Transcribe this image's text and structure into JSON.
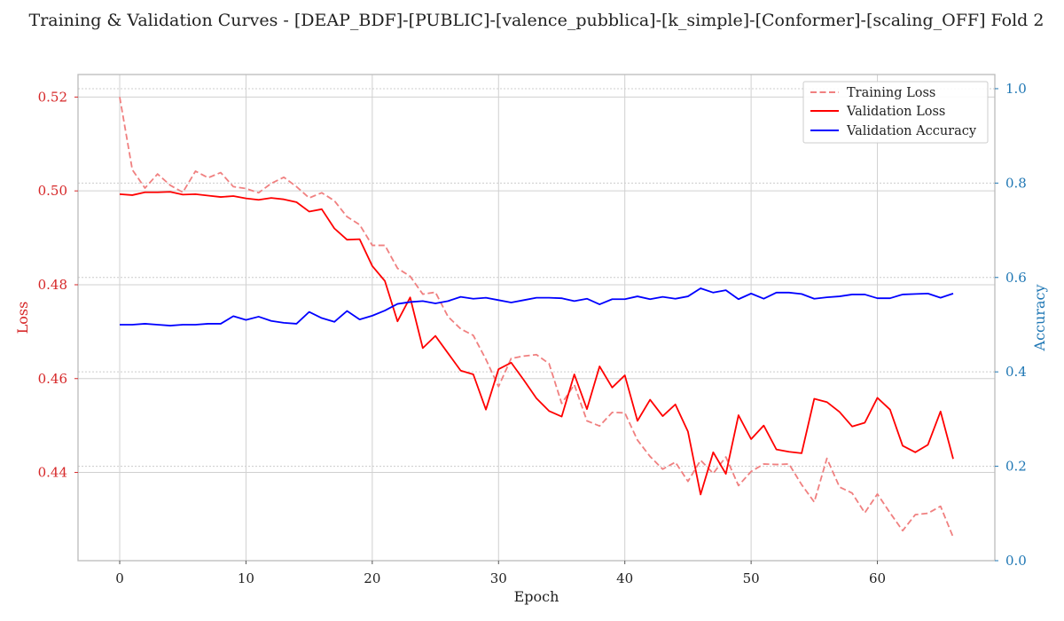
{
  "chart_data": {
    "type": "line",
    "title": "Training & Validation Curves - [DEAP_BDF]-[PUBLIC]-[valence_pubblica]-[k_simple]-[Conformer]-[scaling_OFF] Fold 2",
    "xlabel": "Epoch",
    "ylabel_left": "Loss",
    "ylabel_right": "Accuracy",
    "xlim": [
      -3.3,
      69.3
    ],
    "ylim_left": [
      0.4212,
      0.5248
    ],
    "ylim_right": [
      0.0,
      1.03
    ],
    "x_ticks": [
      0,
      10,
      20,
      30,
      40,
      50,
      60
    ],
    "y_ticks_left": [
      0.44,
      0.46,
      0.48,
      0.5,
      0.52
    ],
    "y_ticks_left_labels": [
      "0.44",
      "0.46",
      "0.48",
      "0.50",
      "0.52"
    ],
    "y_ticks_right": [
      0.0,
      0.2,
      0.4,
      0.6,
      0.8,
      1.0
    ],
    "y_ticks_right_labels": [
      "0.0",
      "0.2",
      "0.4",
      "0.6",
      "0.8",
      "1.0"
    ],
    "grid": true,
    "legend_position": "top-right",
    "colors": {
      "training_loss": "#f08080",
      "validation_loss": "#ff0000",
      "validation_accuracy": "#0000ff",
      "left_axis": "#d62728",
      "right_axis": "#1f77b4"
    },
    "series": [
      {
        "name": "Training Loss",
        "axis": "left",
        "style": "dashed",
        "color": "#f08080",
        "values": [
          0.52,
          0.5045,
          0.5006,
          0.5036,
          0.5012,
          0.4997,
          0.5042,
          0.5028,
          0.5039,
          0.5009,
          0.5005,
          0.4996,
          0.5016,
          0.5029,
          0.5009,
          0.4985,
          0.4996,
          0.4979,
          0.4945,
          0.4928,
          0.4884,
          0.4884,
          0.4835,
          0.4818,
          0.478,
          0.4784,
          0.4732,
          0.4706,
          0.4692,
          0.4641,
          0.4583,
          0.4643,
          0.4648,
          0.4651,
          0.4632,
          0.4547,
          0.4587,
          0.451,
          0.4499,
          0.4528,
          0.4527,
          0.4469,
          0.4434,
          0.4407,
          0.4422,
          0.4381,
          0.4426,
          0.4398,
          0.4433,
          0.4372,
          0.4402,
          0.4418,
          0.4417,
          0.4418,
          0.4374,
          0.4337,
          0.443,
          0.4369,
          0.4356,
          0.4314,
          0.4354,
          0.4314,
          0.4276,
          0.431,
          0.4313,
          0.4328,
          0.4262
        ]
      },
      {
        "name": "Validation Loss",
        "axis": "left",
        "style": "solid",
        "color": "#ff0000",
        "values": [
          0.4993,
          0.4991,
          0.4997,
          0.4997,
          0.4998,
          0.4992,
          0.4993,
          0.499,
          0.4987,
          0.4989,
          0.4984,
          0.4981,
          0.4985,
          0.4982,
          0.4976,
          0.4956,
          0.4961,
          0.492,
          0.4896,
          0.4897,
          0.484,
          0.4808,
          0.4722,
          0.4773,
          0.4665,
          0.4691,
          0.4654,
          0.4617,
          0.4609,
          0.4534,
          0.462,
          0.4634,
          0.4597,
          0.4558,
          0.4531,
          0.4519,
          0.4609,
          0.4535,
          0.4626,
          0.4581,
          0.4607,
          0.451,
          0.4555,
          0.452,
          0.4545,
          0.4487,
          0.4353,
          0.4443,
          0.4397,
          0.4522,
          0.4471,
          0.45,
          0.4449,
          0.4444,
          0.4441,
          0.4557,
          0.455,
          0.4529,
          0.4498,
          0.4506,
          0.4559,
          0.4534,
          0.4457,
          0.4443,
          0.4459,
          0.453,
          0.4429
        ]
      },
      {
        "name": "Validation Accuracy",
        "axis": "right",
        "style": "solid",
        "color": "#0000ff",
        "values": [
          0.5,
          0.5,
          0.502,
          0.5,
          0.498,
          0.5,
          0.5,
          0.502,
          0.502,
          0.518,
          0.51,
          0.517,
          0.508,
          0.504,
          0.502,
          0.527,
          0.514,
          0.506,
          0.529,
          0.511,
          0.519,
          0.53,
          0.544,
          0.548,
          0.55,
          0.545,
          0.55,
          0.559,
          0.555,
          0.557,
          0.552,
          0.547,
          0.552,
          0.557,
          0.557,
          0.556,
          0.55,
          0.555,
          0.543,
          0.554,
          0.554,
          0.56,
          0.554,
          0.559,
          0.555,
          0.56,
          0.577,
          0.568,
          0.573,
          0.554,
          0.566,
          0.555,
          0.568,
          0.568,
          0.565,
          0.555,
          0.558,
          0.56,
          0.564,
          0.564,
          0.556,
          0.556,
          0.564,
          0.565,
          0.566,
          0.557,
          0.566
        ]
      }
    ]
  }
}
